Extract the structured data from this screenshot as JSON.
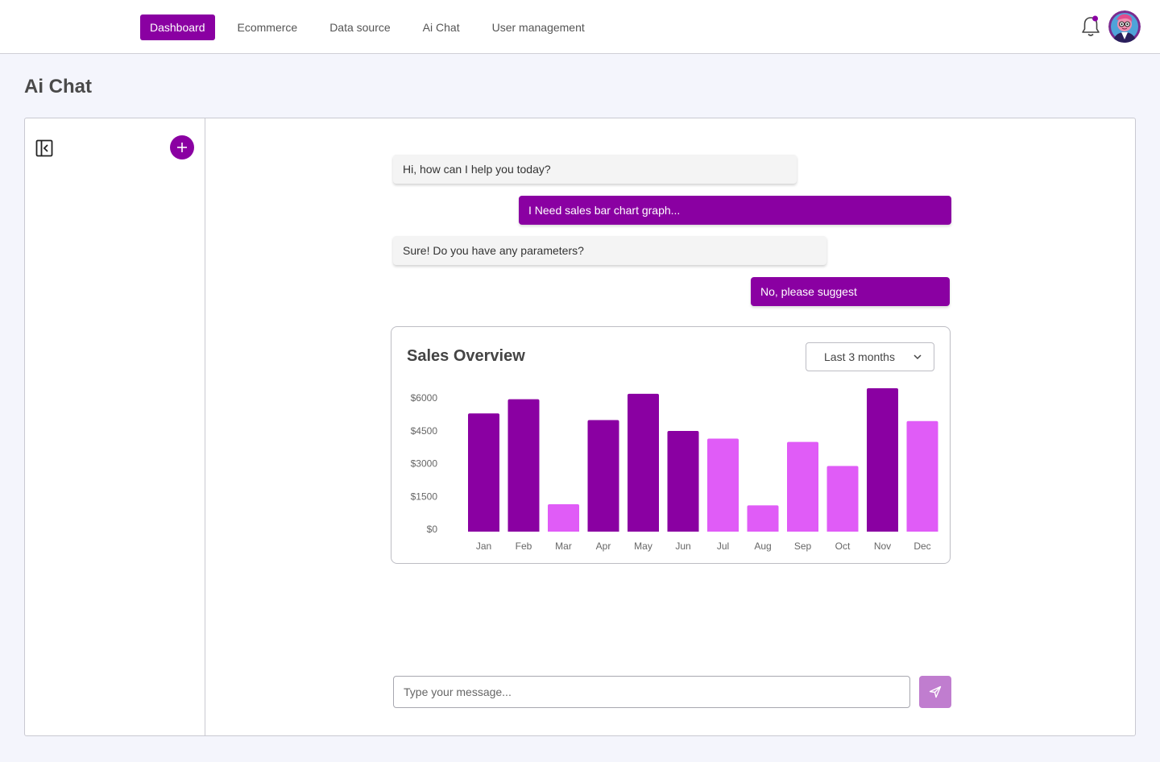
{
  "nav": {
    "items": [
      {
        "label": "Dashboard",
        "active": true
      },
      {
        "label": "Ecommerce",
        "active": false
      },
      {
        "label": "Data source",
        "active": false
      },
      {
        "label": "Ai Chat",
        "active": false
      },
      {
        "label": "User management",
        "active": false
      }
    ],
    "icons": [
      "bell-icon",
      "user-avatar"
    ]
  },
  "page": {
    "title": "Ai Chat"
  },
  "sidebar": {
    "icons": [
      "collapse-sidebar-icon",
      "plus-icon"
    ]
  },
  "chat": {
    "messages": [
      {
        "role": "bot",
        "text": "Hi, how can I help you today?"
      },
      {
        "role": "user",
        "text": "I Need sales bar chart graph..."
      },
      {
        "role": "bot",
        "text": "Sure! Do you have any parameters?"
      },
      {
        "role": "user",
        "text": "No, please suggest"
      }
    ],
    "input_placeholder": "Type your message...",
    "input_value": "",
    "send_icon": "send-icon"
  },
  "chart_card": {
    "title": "Sales Overview",
    "range_selected": "Last 3 months",
    "range_icon": "chevron-down-icon"
  },
  "colors": {
    "accent": "#8a00a2",
    "bar_dark": "#8a00a2",
    "bar_light": "#e05cf7",
    "send_button": "#c07dcf"
  },
  "chart_data": {
    "type": "bar",
    "title": "Sales Overview",
    "categories": [
      "Jan",
      "Feb",
      "Mar",
      "Apr",
      "May",
      "Jun",
      "Jul",
      "Aug",
      "Sep",
      "Oct",
      "Nov",
      "Dec"
    ],
    "values": [
      5400,
      6050,
      1250,
      5100,
      6300,
      4600,
      4250,
      1200,
      4100,
      3000,
      6550,
      5050
    ],
    "bar_tone": [
      "dark",
      "dark",
      "light",
      "dark",
      "dark",
      "dark",
      "light",
      "light",
      "light",
      "light",
      "dark",
      "light"
    ],
    "yticks": [
      "$0",
      "$1500",
      "$3000",
      "$4500",
      "$6000"
    ],
    "ytick_values": [
      0,
      1500,
      3000,
      4500,
      6000
    ],
    "ylim": [
      0,
      6000
    ],
    "grid": false,
    "legend": "none"
  }
}
